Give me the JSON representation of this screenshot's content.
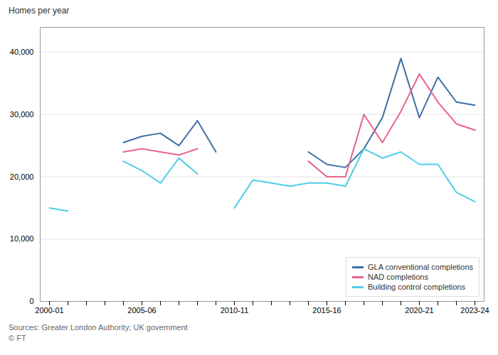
{
  "chart_data": {
    "type": "line",
    "y_label": "Homes per year",
    "annotations": [
      "Sources: Greater London Authority; UK government",
      "© FT"
    ],
    "categories": [
      "2000-01",
      null,
      null,
      null,
      null,
      "2005-06",
      null,
      null,
      null,
      null,
      "2010-11",
      null,
      null,
      null,
      null,
      "2015-16",
      null,
      null,
      null,
      null,
      "2020-21",
      null,
      null,
      "2023-24"
    ],
    "series": [
      {
        "name": "GLA conventional completions",
        "color": "#3d6fa8",
        "values": [
          null,
          null,
          null,
          null,
          25500,
          26500,
          27000,
          25000,
          29000,
          24000,
          null,
          null,
          null,
          null,
          24000,
          22000,
          21500,
          24500,
          29500,
          39000,
          29500,
          36000,
          32000,
          31500
        ]
      },
      {
        "name": "NAD completions",
        "color": "#e8638c",
        "values": [
          null,
          null,
          null,
          null,
          24000,
          24500,
          24000,
          23500,
          24500,
          null,
          null,
          null,
          null,
          null,
          22500,
          20000,
          20000,
          30000,
          25500,
          30500,
          36500,
          32000,
          28500,
          27500
        ]
      },
      {
        "name": "Building control completions",
        "color": "#4ecde8",
        "values": [
          15000,
          14500,
          null,
          null,
          22500,
          21000,
          19000,
          23000,
          20500,
          null,
          15000,
          19500,
          19000,
          18500,
          19000,
          19000,
          18500,
          24500,
          23000,
          24000,
          22000,
          22000,
          17500,
          16000
        ]
      }
    ],
    "ylim": [
      0,
      44000
    ],
    "yticks": [
      0,
      {
        "value": 10000,
        "label": "10,000"
      },
      {
        "value": 20000,
        "label": "20,000"
      },
      {
        "value": 30000,
        "label": "30,000"
      },
      {
        "value": 40000,
        "label": "40,000"
      }
    ],
    "grid": true,
    "legend": "lower right"
  }
}
